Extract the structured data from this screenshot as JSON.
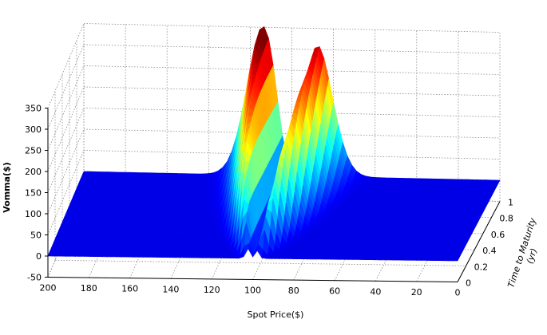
{
  "chart_data": {
    "type": "surface",
    "title": "",
    "xlabel": "Spot Price($)",
    "ylabel": "Time to Maturity (yr)",
    "ylabel_lines": [
      "Time to Maturity",
      "(yr)"
    ],
    "zlabel": "Vomma($)",
    "xlim": [
      0,
      200
    ],
    "ylim": [
      0,
      1
    ],
    "zlim": [
      -50,
      350
    ],
    "x_ticks": [
      "0",
      "20",
      "40",
      "60",
      "80",
      "100",
      "120",
      "140",
      "160",
      "180",
      "200"
    ],
    "y_ticks": [
      "0",
      "0.2",
      "0.4",
      "0.6",
      "0.8",
      "1"
    ],
    "z_ticks": [
      "-50",
      "0",
      "50",
      "100",
      "150",
      "200",
      "250",
      "300",
      "350"
    ],
    "x_direction": "reversed",
    "grid": true,
    "colormap": "jet",
    "description_values": {
      "strike": 100,
      "peak_left": {
        "spot": 112,
        "time": 0.8,
        "vomma": 330
      },
      "peak_right": {
        "spot": 90,
        "time": 0.8,
        "vomma": 300
      }
    }
  }
}
